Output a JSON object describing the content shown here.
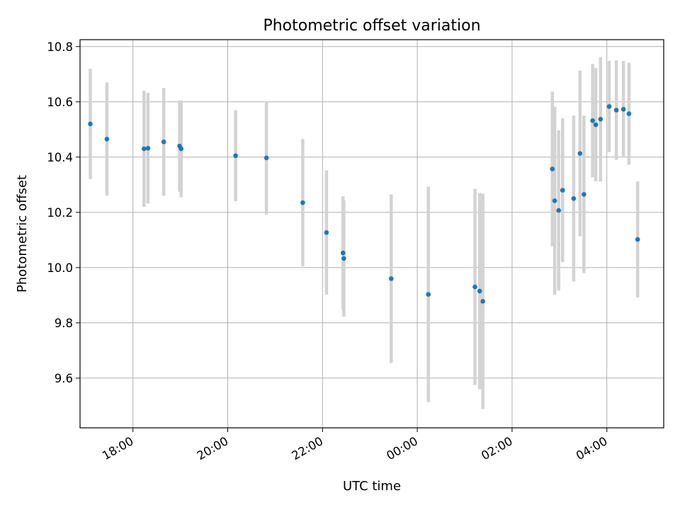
{
  "chart_data": {
    "type": "scatter",
    "title": "Photometric offset variation",
    "xlabel": "UTC time",
    "ylabel": "Photometric offset",
    "x_axis_kind": "time",
    "xlim": [
      "16:53",
      "05:12"
    ],
    "ylim": [
      9.42,
      10.825
    ],
    "x_ticks": [
      "18:00",
      "20:00",
      "22:00",
      "00:00",
      "02:00",
      "04:00"
    ],
    "y_ticks": [
      "9.6",
      "9.8",
      "10.0",
      "10.2",
      "10.4",
      "10.6",
      "10.8"
    ],
    "grid": true,
    "colors": {
      "point": "#1f77b4",
      "errorbar": "#d3d3d3",
      "grid": "#b0b0b0"
    },
    "series": [
      {
        "points": [
          {
            "x": "17:06",
            "y": 10.52,
            "err": 0.2
          },
          {
            "x": "17:27",
            "y": 10.465,
            "err": 0.205
          },
          {
            "x": "18:14",
            "y": 10.43,
            "err": 0.21
          },
          {
            "x": "18:19",
            "y": 10.432,
            "err": 0.2
          },
          {
            "x": "18:39",
            "y": 10.455,
            "err": 0.195
          },
          {
            "x": "18:59",
            "y": 10.44,
            "err": 0.165
          },
          {
            "x": "19:01",
            "y": 10.43,
            "err": 0.175
          },
          {
            "x": "20:10",
            "y": 10.405,
            "err": 0.165
          },
          {
            "x": "20:49",
            "y": 10.397,
            "err": 0.205
          },
          {
            "x": "21:35",
            "y": 10.235,
            "err": 0.23
          },
          {
            "x": "22:05",
            "y": 10.127,
            "err": 0.225
          },
          {
            "x": "22:26",
            "y": 10.053,
            "err": 0.205
          },
          {
            "x": "22:27",
            "y": 10.033,
            "err": 0.21
          },
          {
            "x": "23:27",
            "y": 9.96,
            "err": 0.305
          },
          {
            "x": "00:14",
            "y": 9.903,
            "err": 0.39
          },
          {
            "x": "01:13",
            "y": 9.93,
            "err": 0.355
          },
          {
            "x": "01:19",
            "y": 9.915,
            "err": 0.355
          },
          {
            "x": "01:23",
            "y": 9.878,
            "err": 0.39
          },
          {
            "x": "02:51",
            "y": 10.357,
            "err": 0.28
          },
          {
            "x": "02:54",
            "y": 10.242,
            "err": 0.34
          },
          {
            "x": "02:59",
            "y": 10.207,
            "err": 0.29
          },
          {
            "x": "03:04",
            "y": 10.28,
            "err": 0.26
          },
          {
            "x": "03:18",
            "y": 10.25,
            "err": 0.3
          },
          {
            "x": "03:26",
            "y": 10.413,
            "err": 0.3
          },
          {
            "x": "03:31",
            "y": 10.265,
            "err": 0.285
          },
          {
            "x": "03:42",
            "y": 10.532,
            "err": 0.205
          },
          {
            "x": "03:46",
            "y": 10.517,
            "err": 0.205
          },
          {
            "x": "03:52",
            "y": 10.537,
            "err": 0.225
          },
          {
            "x": "04:03",
            "y": 10.583,
            "err": 0.165
          },
          {
            "x": "04:12",
            "y": 10.57,
            "err": 0.18
          },
          {
            "x": "04:21",
            "y": 10.573,
            "err": 0.175
          },
          {
            "x": "04:28",
            "y": 10.557,
            "err": 0.185
          },
          {
            "x": "04:39",
            "y": 10.102,
            "err": 0.21
          }
        ]
      }
    ]
  }
}
